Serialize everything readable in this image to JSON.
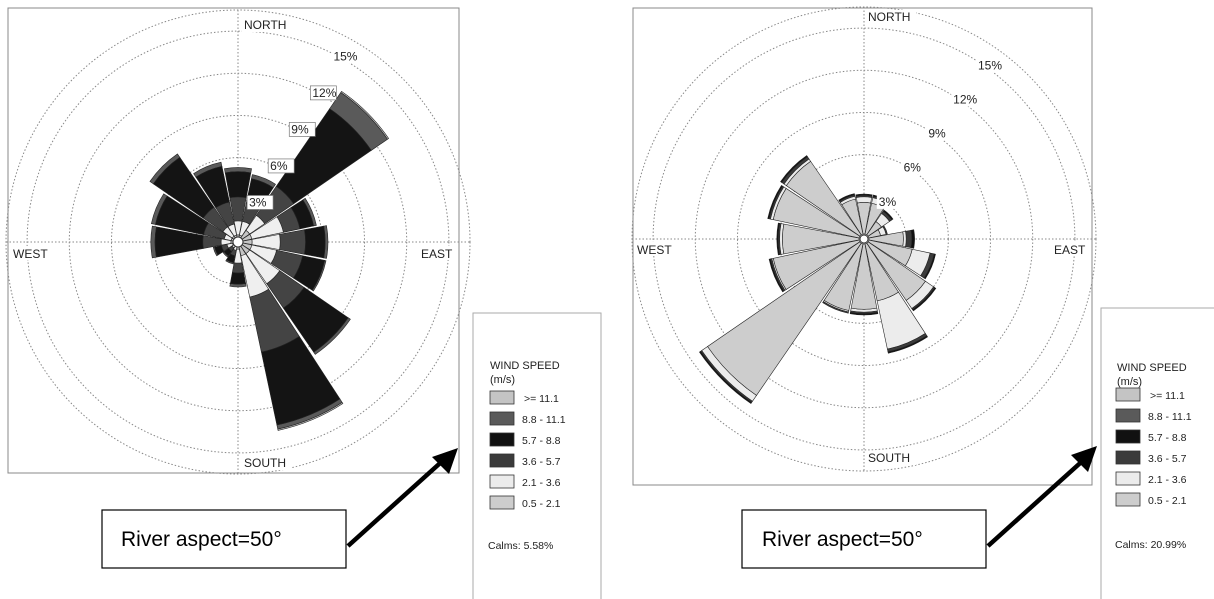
{
  "chart_data": [
    {
      "type": "wind-rose",
      "directions": {
        "north": "NORTH",
        "south": "SOUTH",
        "east": "EAST",
        "west": "WEST"
      },
      "ring_labels": [
        "3%",
        "6%",
        "9%",
        "12%",
        "15%"
      ],
      "ring_values": [
        3,
        6,
        9,
        12,
        15
      ],
      "rmax": 16.5,
      "grid": true,
      "legend": {
        "title": [
          "WIND SPEED",
          "(m/s)"
        ],
        "items": [
          ">= 11.1",
          "8.8 - 11.1",
          "5.7 - 8.8",
          "3.6 - 5.7",
          "2.1 - 3.6",
          "0.5 - 2.1"
        ]
      },
      "calms": "Calms: 5.58%",
      "speed_classes": [
        "0.5 - 2.1",
        "2.1 - 3.6",
        "3.6 - 5.7",
        "5.7 - 8.8",
        "8.8 - 11.1",
        ">= 11.1"
      ],
      "sector_directions_deg": [
        0,
        22.5,
        45,
        67.5,
        90,
        112.5,
        135,
        157.5,
        180,
        202.5,
        225,
        247.5,
        270,
        292.5,
        315,
        337.5
      ],
      "cumulative_frequency_percent": [
        [
          0.5,
          1.5,
          3.2,
          5.0,
          5.3,
          5.3
        ],
        [
          0.5,
          1.5,
          2.8,
          4.6,
          4.9,
          4.9
        ],
        [
          1.0,
          2.3,
          4.8,
          11.5,
          12.9,
          13.0
        ],
        [
          1.0,
          3.3,
          4.5,
          5.5,
          5.7,
          5.7
        ],
        [
          1.0,
          3.0,
          4.8,
          6.2,
          6.4,
          6.4
        ],
        [
          1.0,
          2.8,
          4.7,
          6.3,
          6.4,
          6.4
        ],
        [
          1.0,
          3.6,
          5.7,
          9.5,
          9.7,
          9.7
        ],
        [
          1.0,
          4.0,
          8.0,
          13.3,
          13.6,
          13.7
        ],
        [
          0.5,
          1.5,
          2.2,
          3.0,
          3.2,
          3.2
        ],
        [
          0.3,
          0.6,
          1.0,
          1.5,
          1.6,
          1.6
        ],
        [
          0.3,
          0.5,
          0.8,
          1.2,
          1.3,
          1.3
        ],
        [
          0.4,
          0.8,
          1.2,
          1.7,
          1.8,
          1.8
        ],
        [
          0.5,
          1.2,
          2.5,
          5.9,
          6.2,
          6.2
        ],
        [
          0.5,
          1.0,
          2.5,
          6.0,
          6.3,
          6.3
        ],
        [
          0.5,
          1.3,
          3.0,
          7.3,
          7.6,
          7.6
        ],
        [
          0.5,
          1.3,
          2.9,
          5.5,
          5.8,
          5.8
        ]
      ]
    },
    {
      "type": "wind-rose",
      "directions": {
        "north": "NORTH",
        "south": "SOUTH",
        "east": "EAST",
        "west": "WEST"
      },
      "ring_labels": [
        "3%",
        "6%",
        "9%",
        "12%",
        "15%"
      ],
      "ring_values": [
        3,
        6,
        9,
        12,
        15
      ],
      "rmax": 16.5,
      "grid": true,
      "legend": {
        "title": [
          "WIND SPEED",
          "(m/s)"
        ],
        "items": [
          ">= 11.1",
          "8.8 - 11.1",
          "5.7 - 8.8",
          "3.6 - 5.7",
          "2.1 - 3.6",
          "0.5 - 2.1"
        ]
      },
      "calms": "Calms: 20.99%",
      "speed_classes": [
        "0.5 - 2.1",
        "2.1 - 3.6",
        "3.6 - 5.7",
        "5.7 - 8.8",
        "8.8 - 11.1",
        ">= 11.1"
      ],
      "sector_directions_deg": [
        0,
        22.5,
        45,
        67.5,
        90,
        112.5,
        135,
        157.5,
        180,
        202.5,
        225,
        247.5,
        270,
        292.5,
        315,
        337.5
      ],
      "cumulative_frequency_percent": [
        [
          2.6,
          3.0,
          3.1,
          3.2,
          3.2,
          3.2
        ],
        [
          2.6,
          3.0,
          3.1,
          3.2,
          3.2,
          3.2
        ],
        [
          1.5,
          2.2,
          2.4,
          2.5,
          2.5,
          2.5
        ],
        [
          1.2,
          1.6,
          1.7,
          1.7,
          1.7,
          1.7
        ],
        [
          2.8,
          3.0,
          3.4,
          3.6,
          3.6,
          3.6
        ],
        [
          3.5,
          4.8,
          5.1,
          5.2,
          5.2,
          5.2
        ],
        [
          5.3,
          6.0,
          6.1,
          6.2,
          6.2,
          6.2
        ],
        [
          4.5,
          8.0,
          8.2,
          8.3,
          8.3,
          8.3
        ],
        [
          5.0,
          5.2,
          5.3,
          5.4,
          5.4,
          5.4
        ],
        [
          5.2,
          5.3,
          5.4,
          5.4,
          5.4,
          5.4
        ],
        [
          13.5,
          14.0,
          14.1,
          14.2,
          14.2,
          14.2
        ],
        [
          6.6,
          6.7,
          6.8,
          6.9,
          6.9,
          6.9
        ],
        [
          5.8,
          6.0,
          6.1,
          6.2,
          6.2,
          6.2
        ],
        [
          6.6,
          6.8,
          6.9,
          7.0,
          7.0,
          7.0
        ],
        [
          6.7,
          6.9,
          7.1,
          7.2,
          7.2,
          7.2
        ],
        [
          2.9,
          3.1,
          3.2,
          3.3,
          3.3,
          3.3
        ]
      ]
    }
  ],
  "annotations": [
    {
      "text": "River aspect=50°"
    },
    {
      "text": "River aspect=50°"
    }
  ],
  "colors": {
    "legend_swatches": [
      "#c4c4c4",
      "#5a5a5a",
      "#111111",
      "#3b3b3b",
      "#ececec",
      "#cdcdcd"
    ],
    "left_sector_fills": [
      "#c4c4c4",
      "#efefef",
      "#444444",
      "#141414",
      "#5a5a5a",
      "#c4c4c4"
    ],
    "right_sector_fills": [
      "#cdcdcd",
      "#ececec",
      "#3b3b3b",
      "#111111",
      "#5a5a5a",
      "#c4c4c4"
    ]
  }
}
